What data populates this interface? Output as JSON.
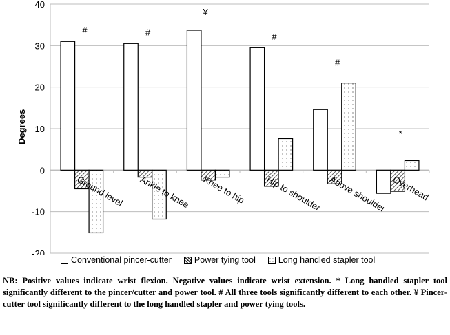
{
  "chart_data": {
    "type": "bar",
    "ylabel": "Degrees",
    "xlabel": "",
    "ylim": [
      -20,
      40
    ],
    "yticks": [
      -20,
      -10,
      0,
      10,
      20,
      30,
      40
    ],
    "grid": true,
    "legend_position": "bottom",
    "categories": [
      "Ground level",
      "Ankle to knee",
      "Knee to hip",
      "Hip to shoulder",
      "Above shoulder",
      "Overhead"
    ],
    "series": [
      {
        "name": "Conventional pincer-cutter",
        "pattern": "plain",
        "values": [
          31.0,
          30.5,
          33.7,
          29.5,
          14.6,
          -5.6
        ]
      },
      {
        "name": "Power tying tool",
        "pattern": "hatched",
        "values": [
          -4.5,
          -1.7,
          -2.4,
          -3.9,
          -3.3,
          -5.1
        ]
      },
      {
        "name": "Long handled stapler tool",
        "pattern": "dotted",
        "values": [
          -15.1,
          -11.8,
          -1.7,
          7.6,
          21.0,
          2.3
        ]
      }
    ],
    "annotations": [
      "#",
      "#",
      "¥",
      "#",
      "#",
      "*"
    ]
  },
  "footnote": "NB: Positive values indicate wrist flexion. Negative values indicate wrist extension. * Long handled stapler tool significantly different to the pincer/cutter and power tool. # All three tools significantly different to each other. ¥ Pincer-cutter tool significantly different to the long handled stapler and power tying tools."
}
